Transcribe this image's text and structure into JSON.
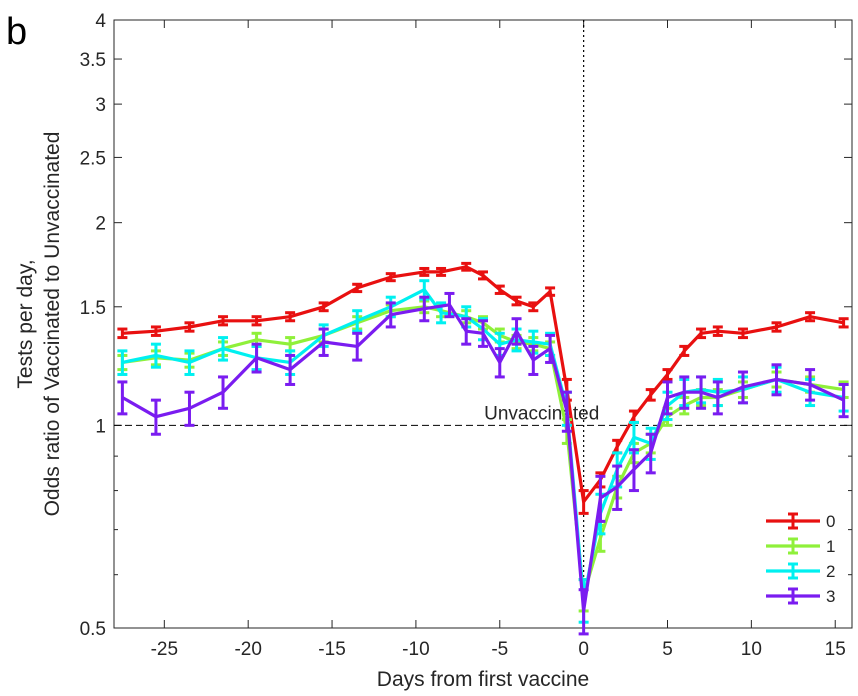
{
  "panel_label": "b",
  "chart_data": {
    "type": "line",
    "title": "",
    "xlabel": "Days from first vaccine",
    "ylabel_line1": "Tests per day,",
    "ylabel_line2": "Odds ratio of Vaccinated to Unvaccinated",
    "xlim": [
      -28,
      16
    ],
    "ylim": [
      0.5,
      4
    ],
    "yscale": "log",
    "xticks": [
      -25,
      -20,
      -15,
      -10,
      -5,
      0,
      5,
      10,
      15
    ],
    "xtick_labels": [
      "-25",
      "-20",
      "-15",
      "-10",
      "-5",
      "0",
      "5",
      "10",
      "15"
    ],
    "yticks": [
      0.5,
      1,
      1.5,
      2,
      2.5,
      3,
      3.5,
      4
    ],
    "ytick_labels": [
      "0.5",
      "1",
      "1.5",
      "2",
      "2.5",
      "3",
      "3.5",
      "4"
    ],
    "grid": false,
    "legend_position": "bottom-right",
    "reference_line": {
      "y": 1,
      "label": "Unvaccinated",
      "style": "dashed"
    },
    "vline": {
      "x": 0,
      "style": "dotted"
    },
    "series": [
      {
        "name": "0",
        "color": "#e81010",
        "x": [
          -27.5,
          -25.5,
          -23.5,
          -21.5,
          -19.5,
          -17.5,
          -15.5,
          -13.5,
          -11.5,
          -9.5,
          -8.5,
          -7,
          -6,
          -5,
          -4,
          -3,
          -2,
          -1,
          0,
          1,
          2,
          3,
          4,
          5,
          6,
          7,
          8,
          9.5,
          11.5,
          13.5,
          15.5
        ],
        "y": [
          1.37,
          1.38,
          1.4,
          1.43,
          1.43,
          1.45,
          1.5,
          1.6,
          1.66,
          1.69,
          1.69,
          1.72,
          1.67,
          1.59,
          1.53,
          1.5,
          1.58,
          1.13,
          0.77,
          0.83,
          0.93,
          1.03,
          1.11,
          1.19,
          1.29,
          1.37,
          1.38,
          1.37,
          1.4,
          1.45,
          1.42
        ],
        "err": [
          0.02,
          0.02,
          0.02,
          0.02,
          0.02,
          0.02,
          0.02,
          0.02,
          0.02,
          0.02,
          0.02,
          0.02,
          0.02,
          0.02,
          0.02,
          0.02,
          0.02,
          0.04,
          0.03,
          0.02,
          0.02,
          0.02,
          0.02,
          0.02,
          0.02,
          0.02,
          0.02,
          0.02,
          0.02,
          0.02,
          0.02
        ]
      },
      {
        "name": "1",
        "color": "#8ff03a",
        "x": [
          -27.5,
          -25.5,
          -23.5,
          -21.5,
          -19.5,
          -17.5,
          -15.5,
          -13.5,
          -11.5,
          -9.5,
          -8.5,
          -7,
          -6,
          -5,
          -4,
          -3,
          -2,
          -1,
          0,
          1,
          2,
          3,
          4,
          5,
          6,
          7,
          8,
          9.5,
          11.5,
          13.5,
          15.5
        ],
        "y": [
          1.24,
          1.26,
          1.25,
          1.3,
          1.34,
          1.32,
          1.36,
          1.42,
          1.48,
          1.5,
          1.48,
          1.45,
          1.42,
          1.36,
          1.33,
          1.32,
          1.3,
          0.98,
          0.56,
          0.68,
          0.81,
          0.91,
          0.94,
          1.03,
          1.07,
          1.1,
          1.1,
          1.13,
          1.17,
          1.15,
          1.13
        ],
        "err": [
          0.03,
          0.03,
          0.03,
          0.03,
          0.03,
          0.03,
          0.03,
          0.03,
          0.03,
          0.03,
          0.03,
          0.03,
          0.03,
          0.03,
          0.03,
          0.03,
          0.03,
          0.04,
          0.03,
          0.03,
          0.03,
          0.03,
          0.03,
          0.03,
          0.03,
          0.03,
          0.03,
          0.03,
          0.03,
          0.03,
          0.03
        ]
      },
      {
        "name": "2",
        "color": "#00f0f0",
        "x": [
          -27.5,
          -25.5,
          -23.5,
          -21.5,
          -19.5,
          -17.5,
          -15.5,
          -13.5,
          -11.5,
          -9.5,
          -8.5,
          -7,
          -6,
          -5,
          -4,
          -3,
          -2,
          -1,
          0,
          1,
          2,
          3,
          4,
          5,
          6,
          7,
          8,
          9.5,
          11.5,
          13.5,
          15.5
        ],
        "y": [
          1.24,
          1.27,
          1.24,
          1.3,
          1.26,
          1.24,
          1.36,
          1.43,
          1.5,
          1.59,
          1.47,
          1.45,
          1.39,
          1.32,
          1.34,
          1.33,
          1.32,
          1.06,
          0.55,
          0.74,
          0.86,
          0.96,
          0.94,
          1.07,
          1.12,
          1.13,
          1.12,
          1.13,
          1.17,
          1.12,
          1.1
        ],
        "err": [
          0.05,
          0.05,
          0.05,
          0.05,
          0.05,
          0.05,
          0.05,
          0.05,
          0.05,
          0.05,
          0.05,
          0.05,
          0.05,
          0.05,
          0.05,
          0.05,
          0.05,
          0.06,
          0.04,
          0.05,
          0.05,
          0.05,
          0.05,
          0.05,
          0.05,
          0.05,
          0.05,
          0.05,
          0.05,
          0.05,
          0.05
        ]
      },
      {
        "name": "3",
        "color": "#7a1cf0",
        "x": [
          -27.5,
          -25.5,
          -23.5,
          -21.5,
          -19.5,
          -17.5,
          -15.5,
          -13.5,
          -11.5,
          -9.5,
          -8,
          -7,
          -6,
          -5,
          -4,
          -3,
          -2,
          -1,
          0,
          1,
          2,
          3,
          4,
          5,
          6,
          7,
          8,
          9.5,
          11.5,
          13.5,
          15.5
        ],
        "y": [
          1.1,
          1.03,
          1.06,
          1.12,
          1.26,
          1.21,
          1.33,
          1.31,
          1.46,
          1.49,
          1.51,
          1.38,
          1.37,
          1.24,
          1.38,
          1.25,
          1.3,
          1.05,
          0.53,
          0.78,
          0.81,
          0.86,
          0.91,
          1.1,
          1.12,
          1.12,
          1.1,
          1.14,
          1.17,
          1.15,
          1.09
        ],
        "err": [
          0.06,
          0.06,
          0.06,
          0.06,
          0.06,
          0.06,
          0.06,
          0.06,
          0.06,
          0.06,
          0.06,
          0.06,
          0.06,
          0.06,
          0.06,
          0.06,
          0.06,
          0.07,
          0.04,
          0.06,
          0.06,
          0.06,
          0.06,
          0.06,
          0.06,
          0.06,
          0.06,
          0.06,
          0.06,
          0.06,
          0.06
        ]
      }
    ]
  }
}
